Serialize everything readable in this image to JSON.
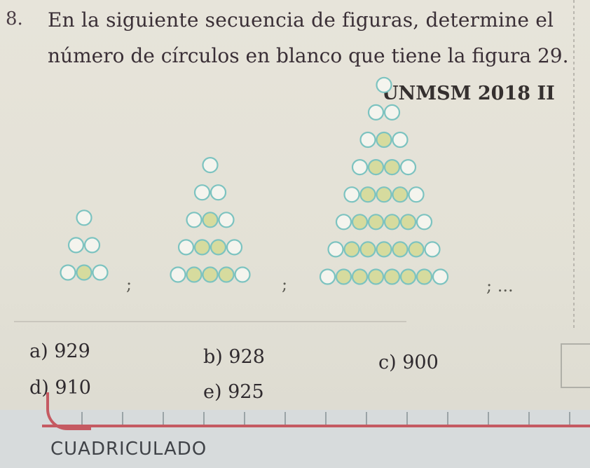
{
  "question": {
    "number": "8.",
    "line1": "En la siguiente secuencia de figuras, determine el",
    "line2": "número de círculos en blanco que tiene la figura 29.",
    "source": "UNMSM 2018 II"
  },
  "figures": {
    "separators": [
      ";",
      ";",
      "; ..."
    ],
    "figure_1_rows": 3,
    "figure_2_rows": 5,
    "figure_3_rows": 8,
    "colors": {
      "white_circle": "#f4f4ee",
      "shaded_circle": "#d6db9e",
      "circle_stroke": "#7cc3c0"
    }
  },
  "options": [
    {
      "label": "a)",
      "value": "929"
    },
    {
      "label": "b)",
      "value": "928"
    },
    {
      "label": "c)",
      "value": "900"
    },
    {
      "label": "d)",
      "value": "910"
    },
    {
      "label": "e)",
      "value": "925"
    }
  ],
  "footer": {
    "brand": "CUADRICULADO"
  }
}
